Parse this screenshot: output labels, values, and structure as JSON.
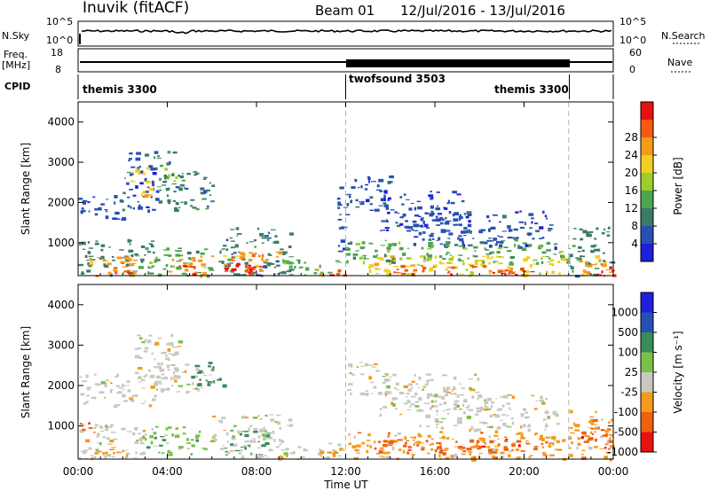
{
  "header": {
    "station": "Inuvik (fitACF)",
    "beam": "Beam 01",
    "date_range": "12/Jul/2016 - 13/Jul/2016"
  },
  "strip_labels": {
    "nsky": "N.Sky",
    "nsky_tick_top": "10^5",
    "nsky_tick_bottom": "10^0",
    "nsearch": "N.Search",
    "nsearch_tick_top": "10^5",
    "nsearch_tick_bottom": "10^0",
    "freq_line1": "Freq.",
    "freq_line2": "[MHz]",
    "freq_tick_top": "18",
    "freq_tick_bottom": "8",
    "nave": "Nave",
    "nave_tick_top": "60",
    "nave_tick_bottom": "0",
    "cpid": "CPID"
  },
  "cpid_segments": [
    {
      "label": "themis 3300",
      "start_hour": 0,
      "end_hour": 12
    },
    {
      "label": "twofsound 3503",
      "start_hour": 12,
      "end_hour": 22
    },
    {
      "label": "themis 3300",
      "start_hour": 22,
      "end_hour": 24
    }
  ],
  "colors": {
    "power": [
      "#1f1fdc",
      "#2850b4",
      "#3a7a68",
      "#4fa54f",
      "#9ccf2a",
      "#f0d020",
      "#f59a18",
      "#f55a10",
      "#e81010"
    ],
    "velocity": [
      "#e81010",
      "#f06010",
      "#f59a18",
      "#c8c8c0",
      "#7cc04a",
      "#3a8a5a",
      "#2850b4",
      "#1f1fdc"
    ],
    "gray_line": "#b4b4b4"
  },
  "chart_data": [
    {
      "type": "heatmap",
      "name_key": "power",
      "ylabel": "Slant Range [km]",
      "xlabel": "",
      "x_ticks": [
        "00:00",
        "04:00",
        "08:00",
        "12:00",
        "16:00",
        "20:00",
        "00:00"
      ],
      "y_ticks": [
        "1000",
        "2000",
        "3000",
        "4000"
      ],
      "ylim": [
        180,
        4500
      ],
      "xlim_hours": [
        0,
        24
      ],
      "colorbar_label": "Power [dB]",
      "colorbar_ticks": [
        "4",
        "8",
        "12",
        "16",
        "20",
        "24",
        "28"
      ],
      "blobs": [
        {
          "h0": 0.0,
          "h1": 3.3,
          "r0": 200,
          "r1": 1100,
          "c": 2
        },
        {
          "h0": 0.2,
          "h1": 2.5,
          "r0": 200,
          "r1": 700,
          "c": 6
        },
        {
          "h0": 1.5,
          "h1": 2.5,
          "r0": 200,
          "r1": 420,
          "c": 8
        },
        {
          "h0": 0.0,
          "h1": 2.0,
          "r0": 1500,
          "r1": 2200,
          "c": 1
        },
        {
          "h0": 2.0,
          "h1": 3.5,
          "r0": 1800,
          "r1": 3300,
          "c": 1
        },
        {
          "h0": 2.2,
          "h1": 3.2,
          "r0": 2200,
          "r1": 2900,
          "c": 5
        },
        {
          "h0": 3.5,
          "h1": 4.6,
          "r0": 2000,
          "r1": 3300,
          "c": 2
        },
        {
          "h0": 3.8,
          "h1": 4.4,
          "r0": 2400,
          "r1": 2900,
          "c": 4
        },
        {
          "h0": 4.3,
          "h1": 6.0,
          "r0": 1800,
          "r1": 2800,
          "c": 2
        },
        {
          "h0": 3.0,
          "h1": 6.0,
          "r0": 200,
          "r1": 900,
          "c": 3
        },
        {
          "h0": 4.0,
          "h1": 6.0,
          "r0": 200,
          "r1": 700,
          "c": 6
        },
        {
          "h0": 4.5,
          "h1": 5.2,
          "r0": 200,
          "r1": 450,
          "c": 8
        },
        {
          "h0": 6.3,
          "h1": 9.5,
          "r0": 200,
          "r1": 1400,
          "c": 2
        },
        {
          "h0": 6.5,
          "h1": 9.0,
          "r0": 200,
          "r1": 800,
          "c": 6
        },
        {
          "h0": 6.5,
          "h1": 9.0,
          "r0": 200,
          "r1": 500,
          "c": 8
        },
        {
          "h0": 9.0,
          "h1": 12.0,
          "r0": 200,
          "r1": 600,
          "c": 3
        },
        {
          "h0": 10.0,
          "h1": 12.0,
          "r0": 200,
          "r1": 350,
          "c": 7
        },
        {
          "h0": 11.6,
          "h1": 12.1,
          "r0": 700,
          "r1": 2600,
          "c": 1
        },
        {
          "h0": 12.0,
          "h1": 14.0,
          "r0": 1800,
          "r1": 2700,
          "c": 1
        },
        {
          "h0": 13.5,
          "h1": 17.5,
          "r0": 1300,
          "r1": 2300,
          "c": 1
        },
        {
          "h0": 15.0,
          "h1": 21.5,
          "r0": 900,
          "r1": 1800,
          "c": 1
        },
        {
          "h0": 12.0,
          "h1": 22.0,
          "r0": 500,
          "r1": 1100,
          "c": 3
        },
        {
          "h0": 13.0,
          "h1": 22.0,
          "r0": 200,
          "r1": 700,
          "c": 5
        },
        {
          "h0": 14.0,
          "h1": 20.0,
          "r0": 220,
          "r1": 450,
          "c": 7
        },
        {
          "h0": 18.5,
          "h1": 20.5,
          "r0": 220,
          "r1": 400,
          "c": 8
        },
        {
          "h0": 22.0,
          "h1": 24.0,
          "r0": 200,
          "r1": 1400,
          "c": 2
        },
        {
          "h0": 22.2,
          "h1": 24.0,
          "r0": 200,
          "r1": 700,
          "c": 6
        },
        {
          "h0": 23.0,
          "h1": 24.0,
          "r0": 200,
          "r1": 450,
          "c": 8
        }
      ]
    },
    {
      "type": "heatmap",
      "name_key": "velocity",
      "ylabel": "Slant Range [km]",
      "xlabel": "Time UT",
      "x_ticks": [
        "00:00",
        "04:00",
        "08:00",
        "12:00",
        "16:00",
        "20:00",
        "00:00"
      ],
      "y_ticks": [
        "1000",
        "2000",
        "3000",
        "4000"
      ],
      "ylim": [
        180,
        4500
      ],
      "xlim_hours": [
        0,
        24
      ],
      "colorbar_label": "Velocity [m s⁻¹]",
      "colorbar_ticks": [
        "1000",
        "500",
        "100",
        "25",
        "-25",
        "-100",
        "-500",
        "-1000"
      ],
      "blobs": [
        {
          "h0": 0.0,
          "h1": 3.0,
          "r0": 200,
          "r1": 1100,
          "c": 3
        },
        {
          "h0": 0.0,
          "h1": 0.7,
          "r0": 600,
          "r1": 1200,
          "c": 1
        },
        {
          "h0": 0.3,
          "h1": 2.5,
          "r0": 200,
          "r1": 500,
          "c": 2
        },
        {
          "h0": 0.0,
          "h1": 3.5,
          "r0": 1500,
          "r1": 2300,
          "c": 3
        },
        {
          "h0": 2.5,
          "h1": 4.5,
          "r0": 2000,
          "r1": 3300,
          "c": 3
        },
        {
          "h0": 3.0,
          "h1": 6.0,
          "r0": 300,
          "r1": 1000,
          "c": 4
        },
        {
          "h0": 3.5,
          "h1": 6.0,
          "r0": 1800,
          "r1": 2600,
          "c": 3
        },
        {
          "h0": 5.0,
          "h1": 6.5,
          "r0": 2000,
          "r1": 2600,
          "c": 5
        },
        {
          "h0": 6.0,
          "h1": 9.5,
          "r0": 200,
          "r1": 1300,
          "c": 3
        },
        {
          "h0": 6.5,
          "h1": 8.5,
          "r0": 300,
          "r1": 900,
          "c": 5
        },
        {
          "h0": 9.0,
          "h1": 12.0,
          "r0": 200,
          "r1": 600,
          "c": 3
        },
        {
          "h0": 10.5,
          "h1": 12.0,
          "r0": 250,
          "r1": 400,
          "c": 2
        },
        {
          "h0": 12.0,
          "h1": 14.0,
          "r0": 1800,
          "r1": 2600,
          "c": 3
        },
        {
          "h0": 13.5,
          "h1": 18.0,
          "r0": 1300,
          "r1": 2300,
          "c": 3
        },
        {
          "h0": 15.0,
          "h1": 21.5,
          "r0": 900,
          "r1": 1800,
          "c": 3
        },
        {
          "h0": 12.0,
          "h1": 22.0,
          "r0": 200,
          "r1": 900,
          "c": 2
        },
        {
          "h0": 13.0,
          "h1": 21.0,
          "r0": 350,
          "r1": 700,
          "c": 1
        },
        {
          "h0": 22.0,
          "h1": 24.0,
          "r0": 200,
          "r1": 1400,
          "c": 2
        },
        {
          "h0": 22.5,
          "h1": 24.0,
          "r0": 400,
          "r1": 1000,
          "c": 1
        }
      ]
    }
  ]
}
